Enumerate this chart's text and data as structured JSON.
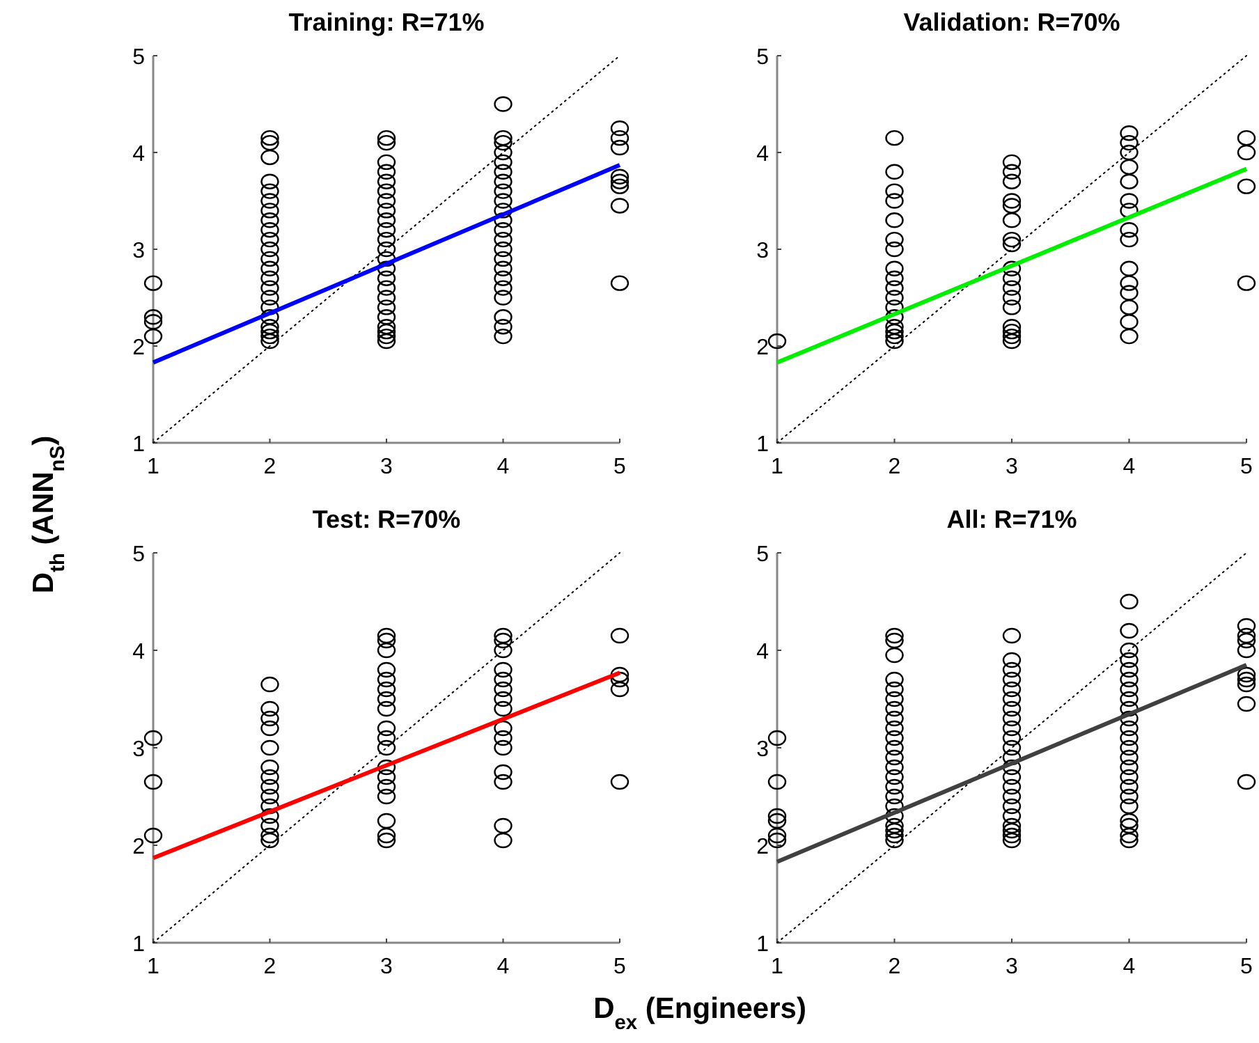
{
  "chart_data": [
    {
      "type": "scatter",
      "title": "Training: R=71%",
      "ylabel": "D$_{th}$ (ANN$_{nS}$)",
      "xlim": [
        1,
        5
      ],
      "ylim": [
        1,
        5
      ],
      "xticks": [
        1,
        2,
        3,
        4,
        5
      ],
      "yticks": [
        1,
        2,
        3,
        4,
        5
      ],
      "grid": false,
      "series": [
        {
          "marker": "circle",
          "color": "#000000",
          "x": [
            1,
            1,
            1,
            1,
            2,
            2,
            2,
            2,
            2,
            2,
            2,
            2,
            2,
            2,
            2,
            2,
            2,
            2,
            2,
            2,
            2,
            2,
            2,
            2,
            2,
            2,
            3,
            3,
            3,
            3,
            3,
            3,
            3,
            3,
            3,
            3,
            3,
            3,
            3,
            3,
            3,
            3,
            3,
            3,
            3,
            3,
            3,
            3,
            3,
            4,
            4,
            4,
            4,
            4,
            4,
            4,
            4,
            4,
            4,
            4,
            4,
            4,
            4,
            4,
            4,
            4,
            4,
            4,
            4,
            4,
            4,
            5,
            5,
            5,
            5,
            5,
            5,
            5,
            5
          ],
          "values": [
            2.65,
            2.3,
            2.25,
            2.1,
            2.05,
            2.1,
            2.15,
            2.2,
            2.3,
            2.4,
            2.5,
            2.6,
            2.7,
            2.8,
            2.9,
            3.0,
            3.1,
            3.2,
            3.3,
            3.4,
            3.5,
            3.6,
            3.7,
            3.95,
            4.1,
            4.15,
            2.05,
            2.1,
            2.15,
            2.2,
            2.3,
            2.4,
            2.5,
            2.6,
            2.7,
            2.8,
            2.9,
            3.0,
            3.1,
            3.2,
            3.3,
            3.4,
            3.5,
            3.6,
            3.7,
            3.8,
            3.9,
            4.1,
            4.15,
            2.1,
            2.2,
            2.3,
            2.5,
            2.6,
            2.7,
            2.8,
            2.9,
            3.0,
            3.1,
            3.2,
            3.3,
            3.4,
            3.5,
            3.6,
            3.7,
            3.8,
            3.9,
            4.0,
            4.1,
            4.15,
            4.5,
            4.25,
            4.15,
            4.05,
            3.75,
            3.7,
            3.65,
            3.45,
            2.65
          ]
        },
        {
          "type": "line",
          "line_style": "solid",
          "color": "#0000ff",
          "x": [
            1,
            5
          ],
          "values": [
            1.83,
            3.87
          ]
        },
        {
          "type": "line",
          "line_style": "dotted",
          "color": "#000000",
          "x": [
            1,
            5
          ],
          "values": [
            1,
            5
          ]
        }
      ]
    },
    {
      "type": "scatter",
      "title": "Validation: R=70%",
      "xlim": [
        1,
        5
      ],
      "ylim": [
        1,
        5
      ],
      "xticks": [
        1,
        2,
        3,
        4,
        5
      ],
      "yticks": [
        1,
        2,
        3,
        4,
        5
      ],
      "grid": false,
      "series": [
        {
          "marker": "circle",
          "color": "#000000",
          "x": [
            1,
            2,
            2,
            2,
            2,
            2,
            2,
            2,
            2,
            2,
            2,
            2,
            2,
            2,
            2,
            2,
            2,
            2,
            3,
            3,
            3,
            3,
            3,
            3,
            3,
            3,
            3,
            3,
            3,
            3,
            3,
            3,
            3,
            3,
            3,
            4,
            4,
            4,
            4,
            4,
            4,
            4,
            4,
            4,
            4,
            4,
            4,
            4,
            4,
            4,
            5,
            5,
            5,
            5
          ],
          "values": [
            2.05,
            2.05,
            2.1,
            2.15,
            2.2,
            2.3,
            2.4,
            2.5,
            2.6,
            2.7,
            2.8,
            3.0,
            3.1,
            3.3,
            3.5,
            3.6,
            3.8,
            4.15,
            2.05,
            2.1,
            2.15,
            2.2,
            2.4,
            2.5,
            2.6,
            2.7,
            2.8,
            3.05,
            3.1,
            3.3,
            3.45,
            3.5,
            3.7,
            3.8,
            3.9,
            2.1,
            2.25,
            2.4,
            2.55,
            2.65,
            2.8,
            3.1,
            3.2,
            3.4,
            3.5,
            3.7,
            3.85,
            4.0,
            4.1,
            4.2,
            4.15,
            4.0,
            3.65,
            2.65
          ]
        },
        {
          "type": "line",
          "line_style": "solid",
          "color": "#00ee00",
          "x": [
            1,
            5
          ],
          "values": [
            1.83,
            3.83
          ]
        },
        {
          "type": "line",
          "line_style": "dotted",
          "color": "#000000",
          "x": [
            1,
            5
          ],
          "values": [
            1,
            5
          ]
        }
      ]
    },
    {
      "type": "scatter",
      "title": "Test: R=70%",
      "xlabel": "D$_{ex}$ (Engineers)",
      "xlim": [
        1,
        5
      ],
      "ylim": [
        1,
        5
      ],
      "xticks": [
        1,
        2,
        3,
        4,
        5
      ],
      "yticks": [
        1,
        2,
        3,
        4,
        5
      ],
      "grid": false,
      "series": [
        {
          "marker": "circle",
          "color": "#000000",
          "x": [
            1,
            1,
            1,
            2,
            2,
            2,
            2,
            2,
            2,
            2,
            2,
            2,
            2,
            2,
            2,
            2,
            2,
            3,
            3,
            3,
            3,
            3,
            3,
            3,
            3,
            3,
            3,
            3,
            3,
            3,
            3,
            3,
            3,
            3,
            3,
            4,
            4,
            4,
            4,
            4,
            4,
            4,
            4,
            4,
            4,
            4,
            4,
            4,
            4,
            4,
            5,
            5,
            5,
            5,
            5
          ],
          "values": [
            3.1,
            2.65,
            2.1,
            2.05,
            2.1,
            2.2,
            2.3,
            2.4,
            2.5,
            2.6,
            2.7,
            2.8,
            3.0,
            3.2,
            3.3,
            3.4,
            3.65,
            2.05,
            2.1,
            2.25,
            2.5,
            2.6,
            2.7,
            2.8,
            3.0,
            3.1,
            3.2,
            3.4,
            3.5,
            3.6,
            3.7,
            3.8,
            4.0,
            4.1,
            4.15,
            2.05,
            2.2,
            2.65,
            2.75,
            3.0,
            3.1,
            3.2,
            3.4,
            3.5,
            3.6,
            3.7,
            3.8,
            4.0,
            4.1,
            4.15,
            4.15,
            3.75,
            3.7,
            3.6,
            2.65
          ]
        },
        {
          "type": "line",
          "line_style": "solid",
          "color": "#ff0000",
          "x": [
            1,
            5
          ],
          "values": [
            1.87,
            3.77
          ]
        },
        {
          "type": "line",
          "line_style": "dotted",
          "color": "#000000",
          "x": [
            1,
            5
          ],
          "values": [
            1,
            5
          ]
        }
      ]
    },
    {
      "type": "scatter",
      "title": "All: R=71%",
      "xlim": [
        1,
        5
      ],
      "ylim": [
        1,
        5
      ],
      "xticks": [
        1,
        2,
        3,
        4,
        5
      ],
      "yticks": [
        1,
        2,
        3,
        4,
        5
      ],
      "grid": false,
      "series": [
        {
          "marker": "circle",
          "color": "#000000",
          "x": [
            1,
            1,
            1,
            1,
            1,
            1,
            2,
            2,
            2,
            2,
            2,
            2,
            2,
            2,
            2,
            2,
            2,
            2,
            2,
            2,
            2,
            2,
            2,
            2,
            2,
            2,
            2,
            2,
            3,
            3,
            3,
            3,
            3,
            3,
            3,
            3,
            3,
            3,
            3,
            3,
            3,
            3,
            3,
            3,
            3,
            3,
            3,
            3,
            3,
            3,
            4,
            4,
            4,
            4,
            4,
            4,
            4,
            4,
            4,
            4,
            4,
            4,
            4,
            4,
            4,
            4,
            4,
            4,
            4,
            4,
            4,
            4,
            4,
            5,
            5,
            5,
            5,
            5,
            5,
            5,
            5,
            5
          ],
          "values": [
            3.1,
            2.65,
            2.3,
            2.25,
            2.1,
            2.05,
            2.05,
            2.1,
            2.15,
            2.2,
            2.3,
            2.4,
            2.5,
            2.6,
            2.7,
            2.8,
            2.9,
            3.0,
            3.1,
            3.2,
            3.3,
            3.4,
            3.5,
            3.6,
            3.7,
            3.95,
            4.1,
            4.15,
            2.05,
            2.1,
            2.15,
            2.2,
            2.3,
            2.4,
            2.5,
            2.6,
            2.7,
            2.8,
            2.9,
            3.0,
            3.1,
            3.2,
            3.3,
            3.4,
            3.5,
            3.6,
            3.7,
            3.8,
            3.9,
            4.15,
            2.05,
            2.1,
            2.2,
            2.25,
            2.4,
            2.5,
            2.6,
            2.7,
            2.8,
            2.9,
            3.0,
            3.1,
            3.2,
            3.3,
            3.4,
            3.5,
            3.6,
            3.7,
            3.8,
            3.9,
            4.0,
            4.2,
            4.5,
            4.25,
            4.15,
            4.1,
            4.0,
            3.75,
            3.7,
            3.65,
            3.45,
            2.65
          ]
        },
        {
          "type": "line",
          "line_style": "solid",
          "color": "#404040",
          "x": [
            1,
            5
          ],
          "values": [
            1.83,
            3.85
          ]
        },
        {
          "type": "line",
          "line_style": "dotted",
          "color": "#000000",
          "x": [
            1,
            5
          ],
          "values": [
            1,
            5
          ]
        }
      ]
    }
  ]
}
